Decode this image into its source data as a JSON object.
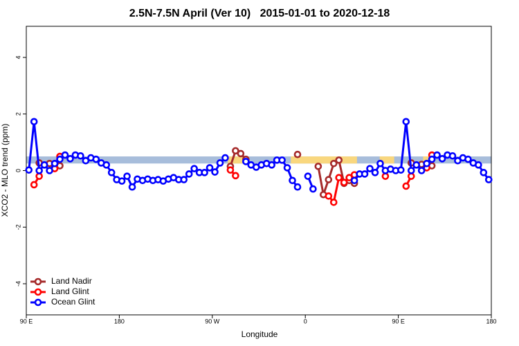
{
  "chart_data": {
    "type": "line",
    "title": "2.5N-7.5N April (Ver 10)   2015-01-01 to 2020-12-18",
    "x_label": "Longitude",
    "y_label": "XCO2 - MLO trend (ppm)",
    "xlim": [
      90,
      540
    ],
    "ylim": [
      -5.1,
      5.1
    ],
    "xticks": [
      {
        "value": 90,
        "label": "90 E"
      },
      180,
      {
        "value": 270,
        "label": "90 W"
      },
      {
        "value": 360,
        "label": "0"
      },
      {
        "value": 450,
        "label": "90 E"
      },
      {
        "value": 540,
        "label": "180"
      }
    ],
    "yticks": [
      -4,
      -2,
      0,
      2,
      4
    ],
    "band_ylim": [
      0.25,
      0.5
    ],
    "band_color": "#a7bddb",
    "land_xranges": [
      [
        285,
        305
      ],
      [
        346,
        410
      ],
      [
        432,
        446
      ],
      [
        474,
        483
      ]
    ],
    "land_color": "#f9d77e",
    "legend": "bottom-left",
    "series": [
      {
        "name": "Land Nadir",
        "color": "#a52a2a",
        "x": [
          102.5,
          107.5,
          112.5,
          117.5,
          122.5,
          127.5,
          287.5,
          292.5,
          297.5,
          302.5,
          307.5,
          352.5,
          357.5,
          372.5,
          377.5,
          382.5,
          387.5,
          392.5,
          397.5,
          402.5,
          407.5,
          412.5,
          462.5,
          467.5,
          472.5,
          477.5,
          482.5
        ],
        "values": [
          0.27,
          null,
          0.25,
          null,
          0.17,
          null,
          0.15,
          0.7,
          0.6,
          0.4,
          null,
          0.57,
          null,
          0.15,
          -0.85,
          -0.32,
          0.25,
          0.37,
          -0.45,
          -0.35,
          -0.45,
          null,
          0.27,
          null,
          0.22,
          null,
          0.17
        ]
      },
      {
        "name": "Land Glint",
        "color": "#ff0000",
        "x": [
          97.5,
          102.5,
          107.5,
          117.5,
          122.5,
          127.5,
          287.5,
          292.5,
          297.5,
          382.5,
          387.5,
          392.5,
          397.5,
          402.5,
          407.5,
          412.5,
          437.5,
          442.5,
          457.5,
          462.5,
          467.5,
          477.5,
          482.5
        ],
        "values": [
          -0.5,
          -0.2,
          null,
          0.07,
          0.5,
          null,
          0.02,
          -0.18,
          null,
          -0.9,
          -1.12,
          -0.25,
          -0.42,
          -0.25,
          -0.15,
          null,
          -0.2,
          null,
          -0.55,
          -0.2,
          null,
          0.1,
          0.55
        ]
      },
      {
        "name": "Ocean Glint",
        "color": "#0000ff",
        "x": [
          92.5,
          97.5,
          102.5,
          107.5,
          112.5,
          117.5,
          122.5,
          127.5,
          132.5,
          137.5,
          142.5,
          147.5,
          152.5,
          157.5,
          162.5,
          167.5,
          172.5,
          177.5,
          182.5,
          187.5,
          192.5,
          197.5,
          202.5,
          207.5,
          212.5,
          217.5,
          222.5,
          227.5,
          232.5,
          237.5,
          242.5,
          247.5,
          252.5,
          257.5,
          262.5,
          267.5,
          272.5,
          277.5,
          282.5,
          287.5,
          302.5,
          307.5,
          312.5,
          317.5,
          322.5,
          327.5,
          332.5,
          337.5,
          342.5,
          347.5,
          352.5,
          357.5,
          362.5,
          367.5,
          372.5,
          407.5,
          412.5,
          417.5,
          422.5,
          427.5,
          432.5,
          437.5,
          442.5,
          447.5,
          452.5,
          457.5,
          462.5,
          467.5,
          472.5,
          477.5,
          482.5,
          487.5,
          492.5,
          497.5,
          502.5,
          507.5,
          512.5,
          517.5,
          522.5,
          527.5,
          532.5,
          537.5
        ],
        "values": [
          0.02,
          1.73,
          0.0,
          0.2,
          0.0,
          0.25,
          0.4,
          0.55,
          0.42,
          0.55,
          0.52,
          0.35,
          0.45,
          0.4,
          0.27,
          0.2,
          -0.07,
          -0.32,
          -0.37,
          -0.2,
          -0.58,
          -0.3,
          -0.35,
          -0.3,
          -0.35,
          -0.32,
          -0.37,
          -0.3,
          -0.25,
          -0.32,
          -0.32,
          -0.12,
          0.07,
          -0.07,
          -0.07,
          0.1,
          -0.05,
          0.27,
          0.45,
          null,
          0.32,
          0.2,
          0.12,
          0.2,
          0.25,
          0.2,
          0.37,
          0.37,
          0.1,
          -0.35,
          -0.58,
          null,
          -0.2,
          -0.65,
          null,
          -0.35,
          -0.12,
          -0.12,
          0.07,
          -0.07,
          0.25,
          0.0,
          0.05,
          0.0,
          0.02,
          1.73,
          0.0,
          0.2,
          0.0,
          0.25,
          0.4,
          0.55,
          0.42,
          0.55,
          0.52,
          0.35,
          0.45,
          0.4,
          0.27,
          0.2,
          -0.07,
          -0.32
        ]
      }
    ]
  }
}
